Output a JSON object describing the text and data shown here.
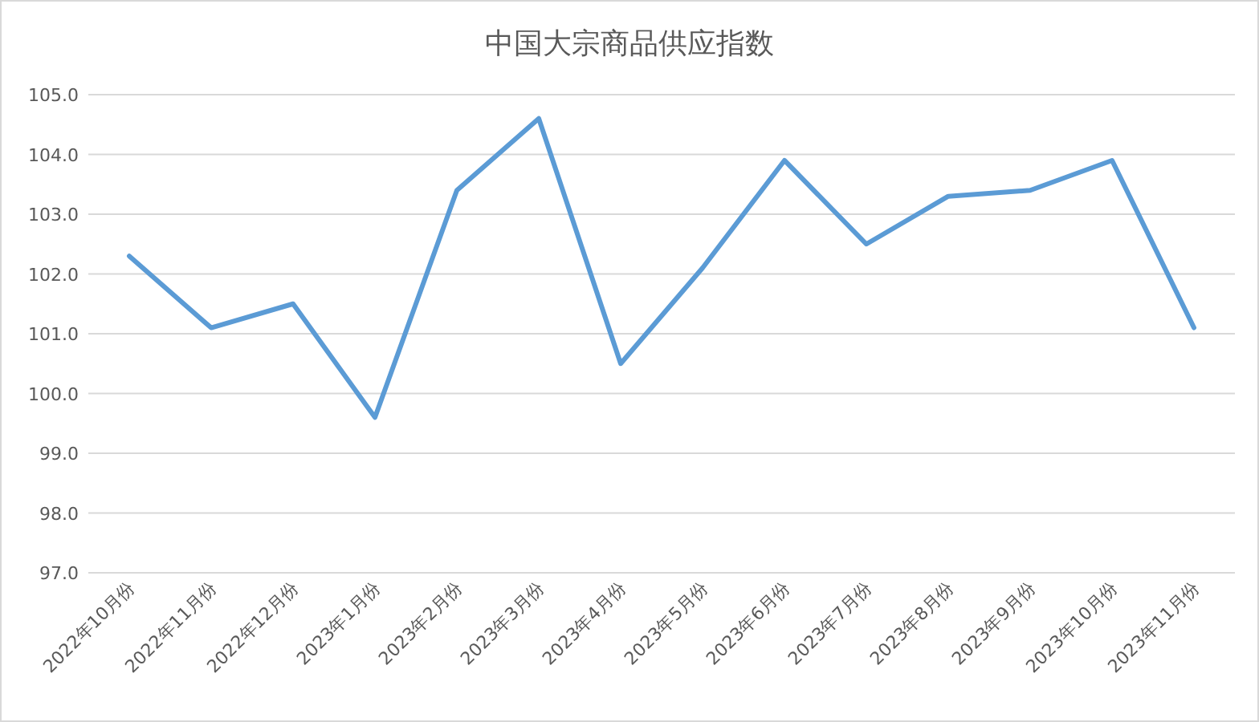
{
  "chart_data": {
    "type": "line",
    "title": "中国大宗商品供应指数",
    "categories": [
      "2022年10月份",
      "2022年11月份",
      "2022年12月份",
      "2023年1月份",
      "2023年2月份",
      "2023年3月份",
      "2023年4月份",
      "2023年5月份",
      "2023年6月份",
      "2023年7月份",
      "2023年8月份",
      "2023年9月份",
      "2023年10月份",
      "2023年11月份"
    ],
    "series": [
      {
        "color": "#5b9bd5",
        "values": [
          102.3,
          101.1,
          101.5,
          99.6,
          103.4,
          104.6,
          100.5,
          102.1,
          103.9,
          102.5,
          103.3,
          103.4,
          103.9,
          101.1
        ]
      }
    ],
    "ylim": [
      97,
      105
    ],
    "yticks": [
      {
        "value": 97,
        "label": "97.0"
      },
      {
        "value": 98,
        "label": "98.0"
      },
      {
        "value": 99,
        "label": "99.0"
      },
      {
        "value": 100,
        "label": "100.0"
      },
      {
        "value": 101,
        "label": "101.0"
      },
      {
        "value": 102,
        "label": "102.0"
      },
      {
        "value": 103,
        "label": "103.0"
      },
      {
        "value": 104,
        "label": "104.0"
      },
      {
        "value": 105,
        "label": "105.0"
      }
    ],
    "grid": "y",
    "marker": "none",
    "line_style": "solid"
  }
}
